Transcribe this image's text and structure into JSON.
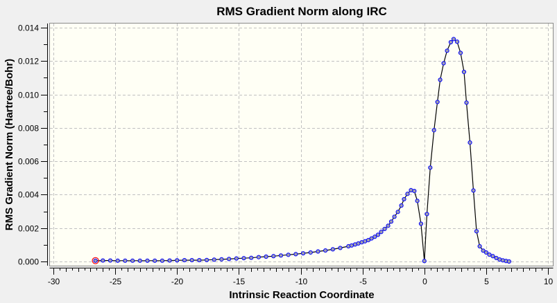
{
  "chart_data": {
    "type": "line",
    "title": "RMS Gradient Norm along IRC",
    "xlabel": "Intrinsic Reaction Coordinate",
    "ylabel": "RMS Gradient Norm (Hartree/Bohr)",
    "xlim": [
      -30,
      10
    ],
    "ylim": [
      0,
      0.014
    ],
    "xticks": [
      "-30",
      "-25",
      "-20",
      "-15",
      "-10",
      "-5",
      "0",
      "5",
      "10"
    ],
    "yticks": [
      "0.000",
      "0.002",
      "0.004",
      "0.006",
      "0.008",
      "0.010",
      "0.012",
      "0.014"
    ],
    "grid": true,
    "legend": "none",
    "colors": {
      "line": "#000000",
      "marker_edge": "#0000ff",
      "marker_fill": "#a0a0b0",
      "highlight": "#ff0000",
      "plot_bg": "#fffff5"
    },
    "highlighted_point_index": 0,
    "series": [
      {
        "x": [
          -26.6,
          -26.0,
          -25.4,
          -24.8,
          -24.2,
          -23.6,
          -23.0,
          -22.4,
          -21.8,
          -21.2,
          -20.6,
          -20.0,
          -19.4,
          -18.8,
          -18.2,
          -17.6,
          -17.0,
          -16.4,
          -15.8,
          -15.2,
          -14.6,
          -14.0,
          -13.4,
          -12.8,
          -12.2,
          -11.6,
          -11.0,
          -10.4,
          -9.8,
          -9.2,
          -8.6,
          -8.0,
          -7.4,
          -6.8,
          -6.14,
          -5.88,
          -5.6,
          -5.34,
          -5.06,
          -4.8,
          -4.53,
          -4.27,
          -4.01,
          -3.75,
          -3.49,
          -3.21,
          -2.93,
          -2.68,
          -2.42,
          -2.14,
          -1.86,
          -1.64,
          -1.36,
          -1.08,
          -0.81,
          -0.57,
          -0.27,
          0.0,
          0.21,
          0.48,
          0.78,
          1.06,
          1.28,
          1.56,
          1.84,
          2.14,
          2.37,
          2.65,
          2.93,
          3.21,
          3.41,
          3.69,
          3.97,
          4.22,
          4.48,
          4.76,
          5.0,
          5.26,
          5.54,
          5.82,
          6.09,
          6.35,
          6.61,
          6.85
        ],
        "y": [
          5e-05,
          6e-05,
          6e-05,
          5e-05,
          5e-05,
          5e-05,
          5e-05,
          5e-05,
          5e-05,
          5e-05,
          6e-05,
          7e-05,
          8e-05,
          8e-05,
          8e-05,
          9e-05,
          0.00011,
          0.00013,
          0.00015,
          0.00018,
          0.0002,
          0.00022,
          0.00026,
          0.00029,
          0.00032,
          0.00036,
          0.0004,
          0.00044,
          0.00049,
          0.00054,
          0.0006,
          0.00066,
          0.00073,
          0.00081,
          0.00091,
          0.00096,
          0.00102,
          0.00108,
          0.00115,
          0.00121,
          0.00128,
          0.00138,
          0.00148,
          0.0016,
          0.00177,
          0.00195,
          0.00214,
          0.00239,
          0.00268,
          0.00297,
          0.00335,
          0.00373,
          0.00405,
          0.00427,
          0.00422,
          0.00363,
          0.00226,
          3e-05,
          0.00284,
          0.00562,
          0.00786,
          0.00955,
          0.01088,
          0.01187,
          0.01262,
          0.01313,
          0.01332,
          0.01316,
          0.01249,
          0.01135,
          0.00951,
          0.00712,
          0.00425,
          0.00181,
          0.00091,
          0.00065,
          0.00054,
          0.00041,
          0.00032,
          0.00021,
          0.00012,
          7e-05,
          3e-05,
          0.0
        ]
      }
    ]
  }
}
